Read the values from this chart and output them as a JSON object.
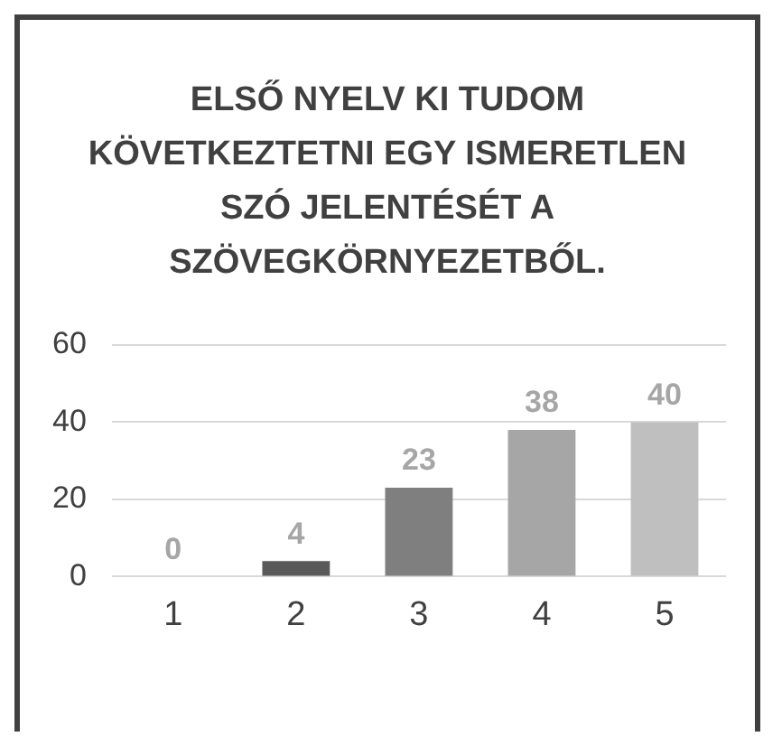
{
  "chart_data": {
    "type": "bar",
    "title": "ELSŐ NYELV KI TUDOM KÖVETKEZTETNI EGY ISMERETLEN SZÓ JELENTÉSÉT A SZÖVEGKÖRNYEZETBŐL.",
    "categories": [
      "1",
      "2",
      "3",
      "4",
      "5"
    ],
    "values": [
      0,
      4,
      23,
      38,
      40
    ],
    "colors": [
      "#404040",
      "#595959",
      "#7f7f7f",
      "#a6a6a6",
      "#bfbfbf"
    ],
    "ylim": [
      0,
      60
    ],
    "yticks": [
      0,
      20,
      40,
      60
    ],
    "grid": "y",
    "data_labels": true,
    "legend": false
  }
}
